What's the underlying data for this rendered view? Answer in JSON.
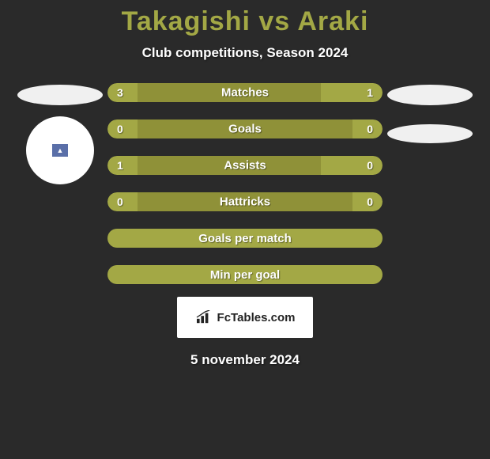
{
  "title": "Takagishi vs Araki",
  "subtitle": "Club competitions, Season 2024",
  "colors": {
    "background": "#2a2a2a",
    "title_color": "#a3a845",
    "text_white": "#ffffff",
    "bar_outer": "#a3a845",
    "bar_inner": "#8f9138",
    "logo_bg": "#ffffff",
    "logo_text": "#232323"
  },
  "stats": [
    {
      "label": "Matches",
      "left_val": "3",
      "right_val": "1",
      "left_width": 38,
      "right_width": 78,
      "type": "split"
    },
    {
      "label": "Goals",
      "left_val": "0",
      "right_val": "0",
      "left_width": 38,
      "right_width": 38,
      "type": "split"
    },
    {
      "label": "Assists",
      "left_val": "1",
      "right_val": "0",
      "left_width": 38,
      "right_width": 78,
      "type": "split"
    },
    {
      "label": "Hattricks",
      "left_val": "0",
      "right_val": "0",
      "left_width": 38,
      "right_width": 38,
      "type": "split"
    },
    {
      "label": "Goals per match",
      "type": "full"
    },
    {
      "label": "Min per goal",
      "type": "full"
    }
  ],
  "logo_text": "FcTables.com",
  "date_text": "5 november 2024"
}
